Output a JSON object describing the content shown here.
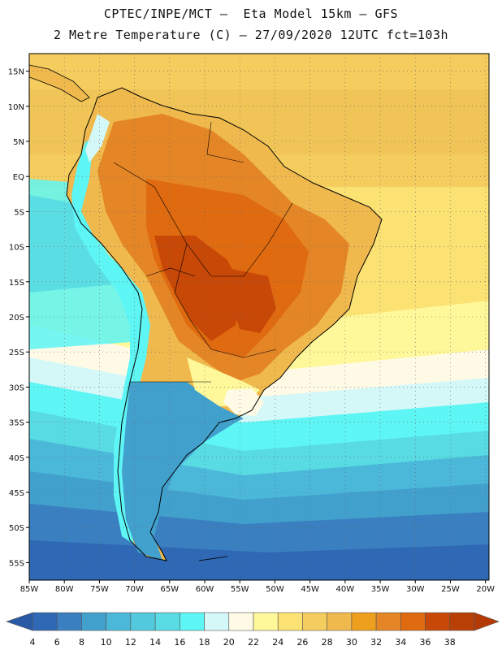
{
  "title": {
    "line1": "CPTEC/INPE/MCT –  Eta Model 15km – GFS",
    "line2": "2 Metre Temperature (C) – 27/09/2020 12UTC fct=103h"
  },
  "map": {
    "lat_ticks": [
      "15N",
      "10N",
      "5N",
      "EQ",
      "5S",
      "10S",
      "15S",
      "20S",
      "25S",
      "30S",
      "35S",
      "40S",
      "45S",
      "50S",
      "55S"
    ],
    "lon_ticks": [
      "85W",
      "80W",
      "75W",
      "70W",
      "65W",
      "60W",
      "55W",
      "50W",
      "45W",
      "40W",
      "35W",
      "30W",
      "25W",
      "20W"
    ],
    "lat_range": [
      17.5,
      -57.5
    ],
    "lon_range": [
      -85,
      -19.5
    ]
  },
  "colorbar": {
    "labels": [
      "4",
      "6",
      "8",
      "10",
      "12",
      "14",
      "16",
      "18",
      "20",
      "22",
      "24",
      "26",
      "28",
      "30",
      "32",
      "34",
      "36",
      "38"
    ],
    "colors": [
      "#2f68b4",
      "#3a7fc0",
      "#42a0cd",
      "#4bb8d9",
      "#52c9dc",
      "#58dbe3",
      "#5ef5f5",
      "#d4f7f8",
      "#fefae6",
      "#fef89a",
      "#fbe273",
      "#f4cd5e",
      "#efb94d",
      "#ee9f1e",
      "#e58626",
      "#df6a10",
      "#c84807",
      "#b84006"
    ],
    "under_color": "#2a5aa5",
    "over_color": "#b33a05"
  }
}
